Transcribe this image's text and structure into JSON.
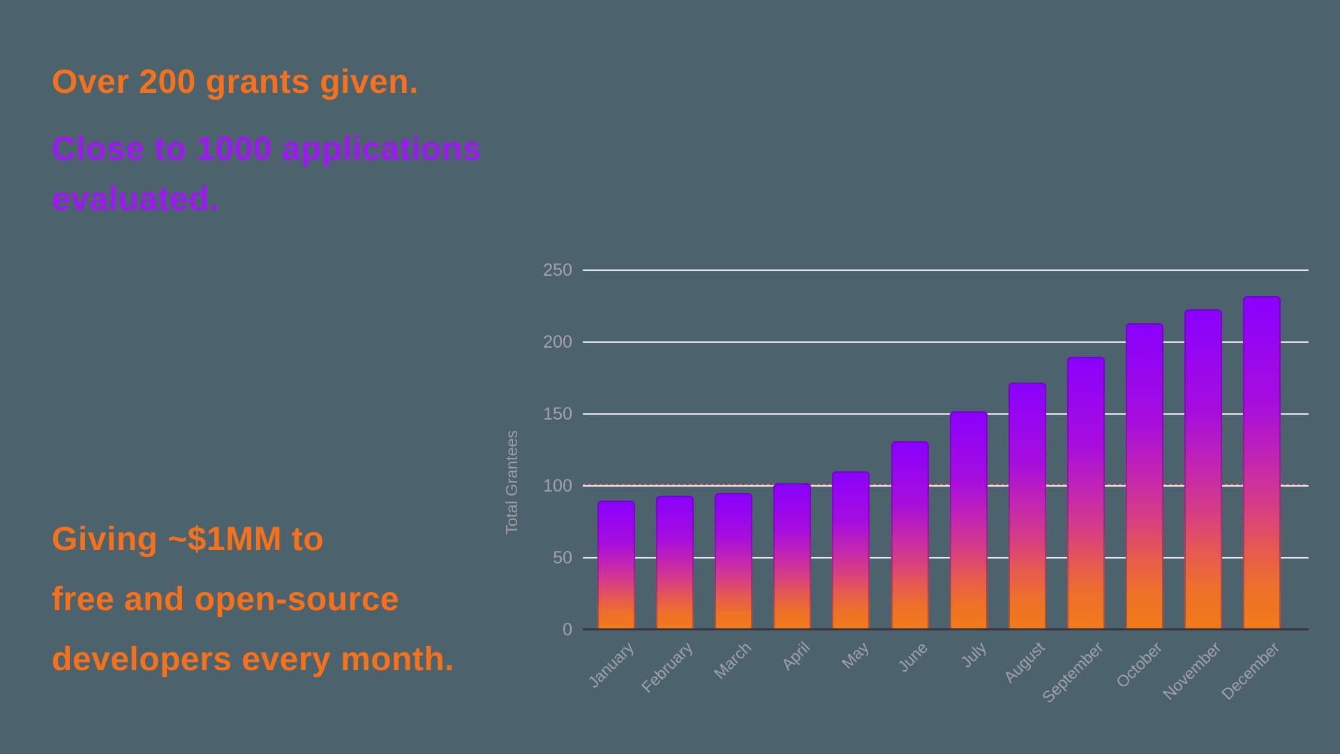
{
  "page": {
    "background_color": "#4C626D"
  },
  "headlines": {
    "grants": {
      "text": "Over 200 grants given.",
      "color": "#F5711C"
    },
    "applications": {
      "text": "Close to 1000 applications\nevaluated.",
      "color": "#9C19F2"
    },
    "giving": {
      "text": "Giving ~$1MM to\nfree and open-source\ndevelopers every month.",
      "color": "#F5711C"
    }
  },
  "chart_data": {
    "type": "bar",
    "title": "",
    "xlabel": "",
    "ylabel": "Total Grantees",
    "categories": [
      "January",
      "February",
      "March",
      "April",
      "May",
      "June",
      "July",
      "August",
      "September",
      "October",
      "November",
      "December"
    ],
    "values": [
      90,
      93,
      95,
      102,
      110,
      131,
      152,
      172,
      190,
      213,
      223,
      232
    ],
    "ylim": [
      0,
      250
    ],
    "yticks": [
      0,
      50,
      100,
      150,
      200,
      250
    ],
    "grid": true,
    "legend": "none",
    "reference_line": {
      "value": 100,
      "style": "dotted",
      "color": "#E9655F"
    },
    "colors": {
      "bar_gradient_top": "#8A00FE",
      "bar_gradient_middle": "#C124B4",
      "bar_gradient_bottom": "#F07B1A",
      "gridline": "#E9E7EC",
      "axis_line": "#3A3642",
      "tick_label": "#A5A1AB"
    }
  }
}
